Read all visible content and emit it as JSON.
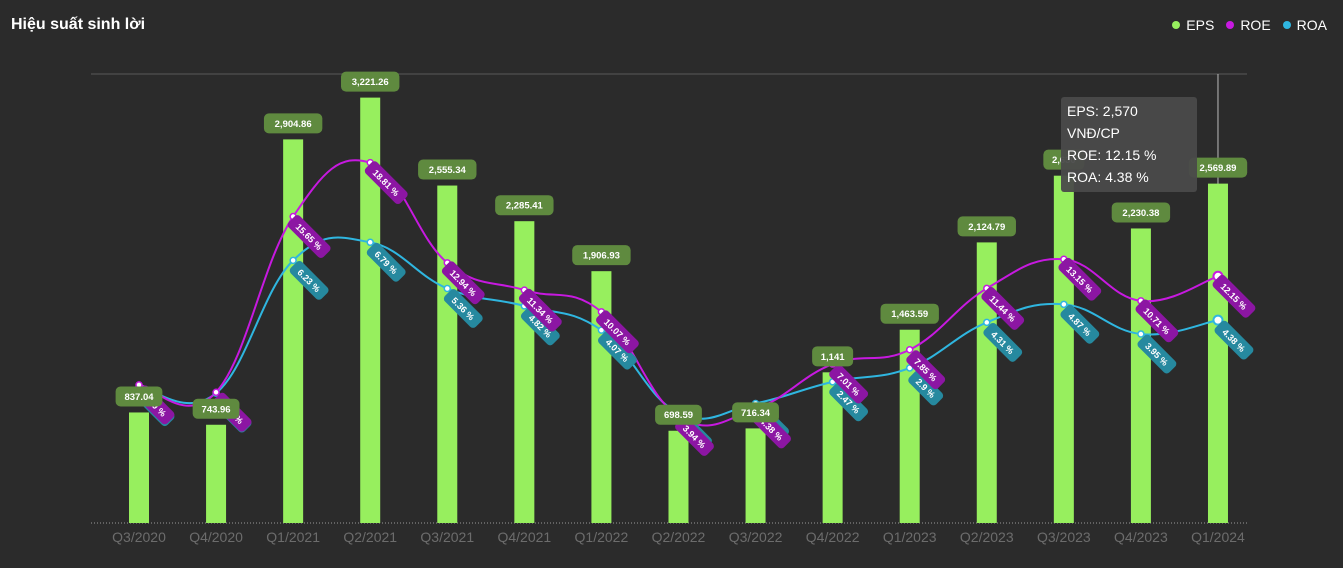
{
  "title": "Hiệu suất sinh lời",
  "legend": [
    {
      "label": "EPS",
      "color": "#97ef5e"
    },
    {
      "label": "ROE",
      "color": "#c719e0"
    },
    {
      "label": "ROA",
      "color": "#2fb6e0"
    }
  ],
  "tooltip": {
    "eps": "EPS: 2,570 VNĐ/CP",
    "roe": "ROE: 12.15 %",
    "roa": "ROA: 4.38 %"
  },
  "chart_data": {
    "type": "bar",
    "title": "Hiệu suất sinh lời",
    "categories": [
      "Q3/2020",
      "Q4/2020",
      "Q1/2021",
      "Q2/2021",
      "Q3/2021",
      "Q4/2021",
      "Q1/2022",
      "Q2/2022",
      "Q3/2022",
      "Q4/2022",
      "Q1/2023",
      "Q2/2023",
      "Q3/2023",
      "Q4/2023",
      "Q1/2024"
    ],
    "series": [
      {
        "name": "EPS",
        "type": "bar",
        "color": "#97ef5e",
        "values": [
          837.04,
          743.96,
          2904.86,
          3221.26,
          2555.34,
          2285.41,
          1906.93,
          698.59,
          716.34,
          1141,
          1463.59,
          2124.79,
          2630,
          2230.38,
          2569.89
        ],
        "labels": [
          "837.04",
          "743.96",
          "2,904.86",
          "3,221.26",
          "2,555.34",
          "2,285.41",
          "1,906.93",
          "698.59",
          "716.34",
          "1,141",
          "1,463.59",
          "2,124.79",
          "2,630",
          "2,230.38",
          "2,569.89"
        ]
      },
      {
        "name": "ROE",
        "type": "line",
        "color": "#c719e0",
        "values": [
          5.79,
          5.36,
          15.65,
          18.81,
          12.94,
          11.34,
          10.07,
          3.94,
          4.38,
          7.01,
          7.85,
          11.44,
          13.15,
          10.71,
          12.15
        ],
        "labels": [
          "5.79 %",
          "5.36 %",
          "15.65 %",
          "18.81 %",
          "12.94 %",
          "11.34 %",
          "10.07 %",
          "3.94 %",
          "4.38 %",
          "7.01 %",
          "7.85 %",
          "11.44 %",
          "13.15 %",
          "10.71 %",
          "12.15 %"
        ]
      },
      {
        "name": "ROA",
        "type": "line",
        "color": "#2fb6e0",
        "values": [
          2.32,
          2.12,
          6.23,
          6.79,
          5.36,
          4.82,
          4.07,
          1.5,
          1.8,
          2.47,
          2.9,
          4.31,
          4.87,
          3.95,
          4.38
        ],
        "labels": [
          "2.32 %",
          "2.12 %",
          "6.23 %",
          "6.79 %",
          "5.36 %",
          "4.82 %",
          "4.07 %",
          "1.5 %",
          "1.8 %",
          "2.47 %",
          "2.9 %",
          "4.31 %",
          "4.87 %",
          "3.95 %",
          "4.38 %"
        ]
      }
    ],
    "eps_ylim": [
      0,
      3400
    ],
    "roe_ylim": [
      -2.3,
      24
    ],
    "roa_ylim": [
      -1.9,
      12
    ],
    "highlighted_category": "Q1/2024",
    "colors": {
      "bar_label_bg": "#5f8a3f",
      "roe_label_bg": "#8c16a3",
      "roa_label_bg": "#26899f",
      "axis_text": "#6c6c6c"
    }
  }
}
